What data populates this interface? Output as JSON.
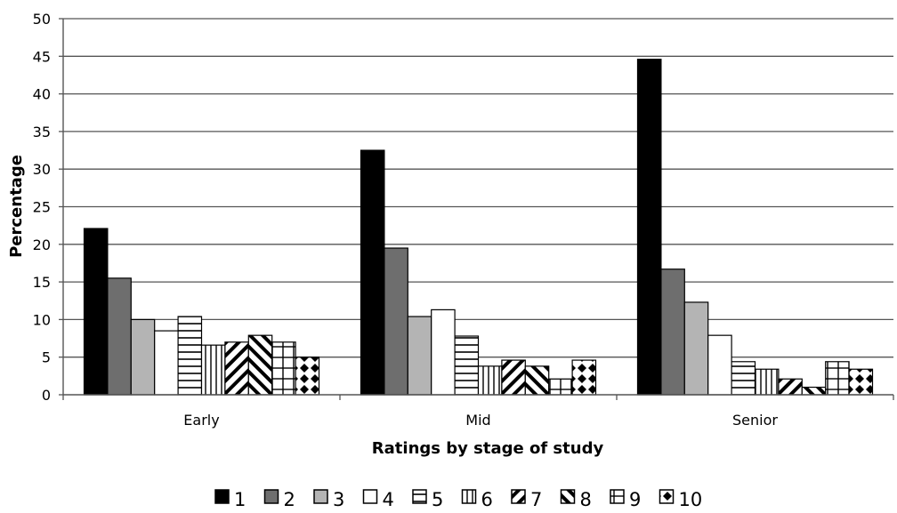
{
  "chart_data": {
    "type": "bar",
    "title": "",
    "xlabel": "Ratings by stage of study",
    "ylabel": "Percentage",
    "ylim": [
      0,
      50
    ],
    "yticks": [
      0,
      5,
      10,
      15,
      20,
      25,
      30,
      35,
      40,
      45,
      50
    ],
    "grid": true,
    "legend_position": "bottom",
    "categories": [
      "Early",
      "Mid",
      "Senior"
    ],
    "series": [
      {
        "name": "1",
        "pattern": "solid-black",
        "values": [
          22.1,
          32.5,
          44.6
        ]
      },
      {
        "name": "2",
        "pattern": "solid-dark-gray",
        "values": [
          15.5,
          19.5,
          16.7
        ]
      },
      {
        "name": "3",
        "pattern": "solid-light-gray",
        "values": [
          10.0,
          10.4,
          12.3
        ]
      },
      {
        "name": "4",
        "pattern": "solid-white",
        "values": [
          8.5,
          11.3,
          7.9
        ]
      },
      {
        "name": "5",
        "pattern": "horizontal-lines",
        "values": [
          10.4,
          7.8,
          4.4
        ]
      },
      {
        "name": "6",
        "pattern": "vertical-lines",
        "values": [
          6.6,
          3.8,
          3.4
        ]
      },
      {
        "name": "7",
        "pattern": "diagonal-down",
        "values": [
          7.0,
          4.6,
          2.1
        ]
      },
      {
        "name": "8",
        "pattern": "diagonal-up",
        "values": [
          7.9,
          3.8,
          1.0
        ]
      },
      {
        "name": "9",
        "pattern": "grid",
        "values": [
          7.0,
          2.1,
          4.4
        ]
      },
      {
        "name": "10",
        "pattern": "diamonds",
        "values": [
          5.0,
          4.6,
          3.4
        ]
      }
    ]
  }
}
